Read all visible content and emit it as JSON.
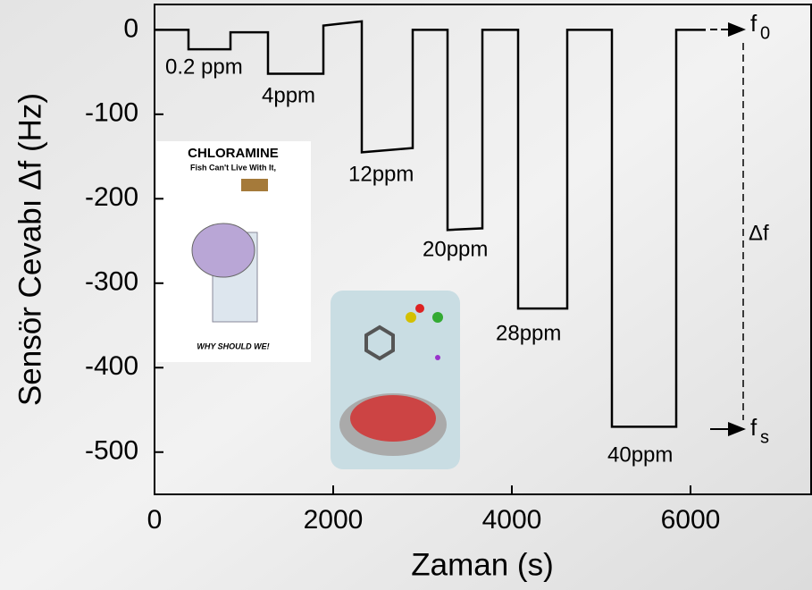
{
  "chart_data": {
    "type": "line",
    "x_label": "Zaman (s)",
    "y_label": "Sensör Cevabı Δf (Hz)",
    "x": [
      0,
      380,
      380,
      850,
      850,
      1270,
      1270,
      1890,
      1890,
      2320,
      2320,
      2890,
      2890,
      3280,
      3280,
      3670,
      3670,
      4070,
      4070,
      4620,
      4620,
      5120,
      5120,
      5840,
      5840,
      6170
    ],
    "values": [
      0,
      0,
      -23,
      -23,
      -3,
      -3,
      -52,
      -52,
      5,
      10,
      -145,
      -140,
      0,
      0,
      -237,
      -235,
      0,
      0,
      -330,
      -330,
      0,
      0,
      -470,
      -470,
      0,
      0
    ],
    "color": "#000000",
    "xlim": [
      0,
      7350
    ],
    "xticks": [
      0,
      2000,
      4000,
      6000
    ],
    "ylim": [
      -550,
      30
    ],
    "yticks": [
      0,
      -100,
      -200,
      -300,
      -400,
      -500
    ],
    "annotations": [
      "0.2 ppm",
      "4ppm",
      "12ppm",
      "20ppm",
      "28ppm",
      "40ppm",
      "Δf"
    ],
    "f0": {
      "text": "f",
      "sub": "0"
    },
    "fs": {
      "text": "f",
      "sub": "s"
    },
    "inset": {
      "title": "CHLORAMINE",
      "subtitle": "Fish Can't Live With It,",
      "footer": "WHY SHOULD WE!"
    }
  }
}
